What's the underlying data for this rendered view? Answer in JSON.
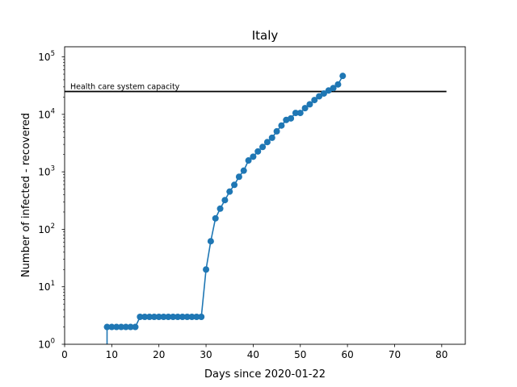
{
  "chart_data": {
    "type": "line",
    "title": "Italy",
    "xlabel": "Days since 2020-01-22",
    "ylabel": "Number of infected - recovered",
    "xlim": [
      0,
      85
    ],
    "ylim": [
      1,
      150000
    ],
    "yscale": "log",
    "grid": false,
    "xticks": [
      0,
      10,
      20,
      30,
      40,
      50,
      60,
      70,
      80
    ],
    "xtick_labels": [
      "0",
      "10",
      "20",
      "30",
      "40",
      "50",
      "60",
      "70",
      "80"
    ],
    "yticks": [
      1,
      10,
      100,
      1000,
      10000,
      100000
    ],
    "ytick_labels": [
      {
        "base": "10",
        "exp": "0"
      },
      {
        "base": "10",
        "exp": "1"
      },
      {
        "base": "10",
        "exp": "2"
      },
      {
        "base": "10",
        "exp": "3"
      },
      {
        "base": "10",
        "exp": "4"
      },
      {
        "base": "10",
        "exp": "5"
      }
    ],
    "series": [
      {
        "color": "#1f77b4",
        "x": [
          9,
          10,
          11,
          12,
          13,
          14,
          15,
          16,
          17,
          18,
          19,
          20,
          21,
          22,
          23,
          24,
          25,
          26,
          27,
          28,
          29,
          30,
          31,
          32,
          33,
          34,
          35,
          36,
          37,
          38,
          39,
          40,
          41,
          42,
          43,
          44,
          45,
          46,
          47,
          48,
          49,
          50,
          51,
          52,
          53,
          54,
          55,
          56,
          57,
          58,
          59
        ],
        "y": [
          2,
          2,
          2,
          2,
          2,
          2,
          2,
          3,
          3,
          3,
          3,
          3,
          3,
          3,
          3,
          3,
          3,
          3,
          3,
          3,
          3,
          20,
          62,
          155,
          229,
          322,
          453,
          593,
          821,
          1049,
          1577,
          1835,
          2263,
          2706,
          3296,
          3916,
          5061,
          6387,
          7985,
          8514,
          10590,
          10590,
          12839,
          14955,
          17750,
          20603,
          23073,
          26062,
          28710,
          33190,
          46638
        ]
      }
    ],
    "annotations": [
      {
        "text": "Health care system capacity",
        "y": 25000,
        "x_start": 0,
        "x_end": 81,
        "color": "#000000"
      }
    ]
  }
}
